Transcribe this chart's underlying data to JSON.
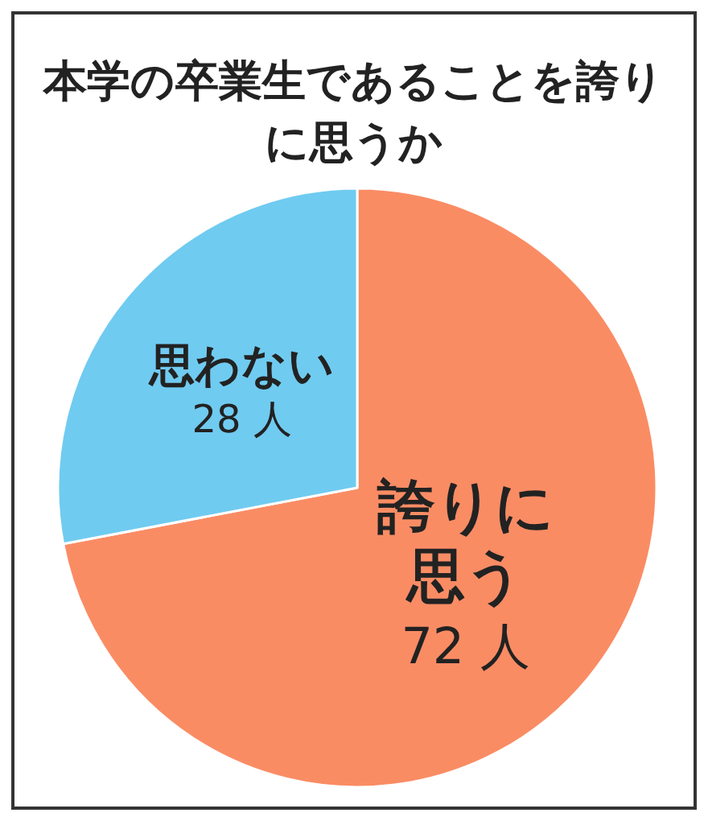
{
  "chart_data": {
    "type": "pie",
    "title": "本学の卒業生であることを誇りに思うか",
    "categories": [
      "誇りに思う",
      "思わない"
    ],
    "values": [
      72,
      28
    ],
    "value_labels": [
      "72 人",
      "28 人"
    ],
    "colors": [
      "#fa8c64",
      "#70cbf0"
    ]
  }
}
